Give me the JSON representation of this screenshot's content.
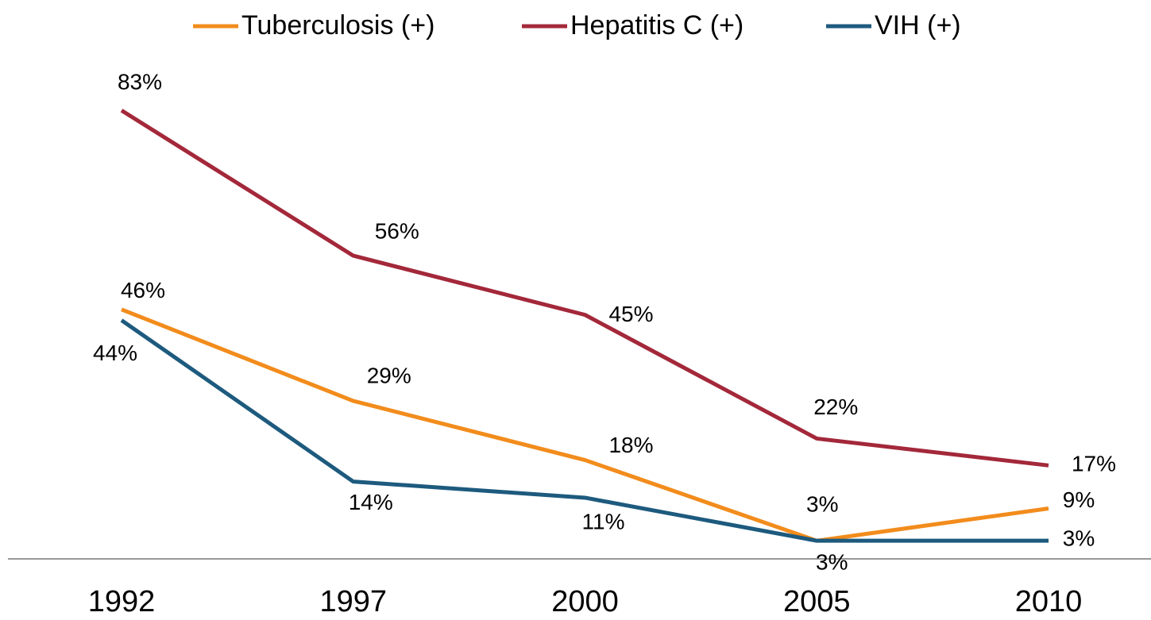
{
  "chart_data": {
    "type": "line",
    "categories": [
      "1992",
      "1997",
      "2000",
      "2005",
      "2010"
    ],
    "series": [
      {
        "name": "Tuberculosis (+)",
        "color": "#f28c1c",
        "values": [
          46,
          29,
          18,
          3,
          9
        ],
        "value_labels": [
          "46%",
          "29%",
          "18%",
          "3%",
          "9%"
        ]
      },
      {
        "name": "Hepatitis C (+)",
        "color": "#a3283a",
        "values": [
          83,
          56,
          45,
          22,
          17
        ],
        "value_labels": [
          "83%",
          "56%",
          "45%",
          "22%",
          "17%"
        ]
      },
      {
        "name": "VIH (+)",
        "color": "#1d5a7e",
        "values": [
          44,
          14,
          11,
          3,
          3
        ],
        "value_labels": [
          "44%",
          "14%",
          "11%",
          "3%",
          "3%"
        ]
      }
    ],
    "ylim": [
      0,
      100
    ],
    "legend": "top"
  }
}
